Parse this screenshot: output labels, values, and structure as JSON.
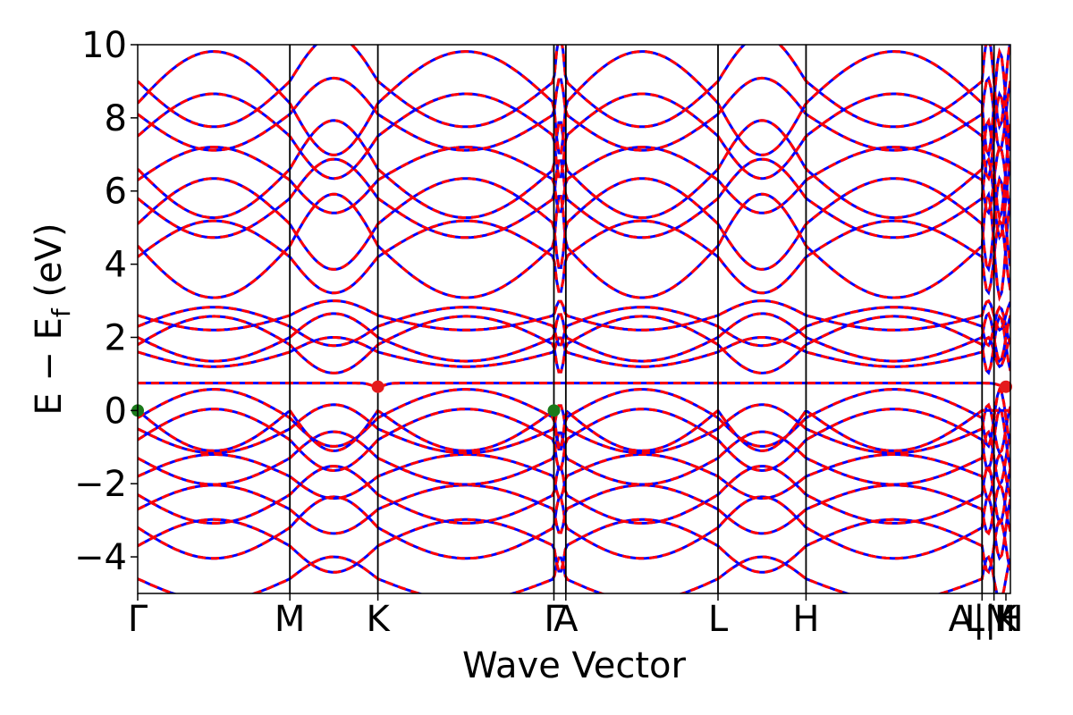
{
  "chart_data": {
    "type": "line",
    "title": "",
    "xlabel": "Wave Vector",
    "ylabel": "E − E",
    "ylabel_subscript": "f",
    "ylabel_unit": "(eV)",
    "ylim": [
      -5,
      10
    ],
    "yticks": [
      {
        "value": -4,
        "label": "−4"
      },
      {
        "value": -2,
        "label": "−2"
      },
      {
        "value": 0,
        "label": "0"
      },
      {
        "value": 2,
        "label": "2"
      },
      {
        "value": 4,
        "label": "4"
      },
      {
        "value": 6,
        "label": "6"
      },
      {
        "value": 8,
        "label": "8"
      },
      {
        "value": 10,
        "label": "10"
      }
    ],
    "xlim": [
      0,
      5.85
    ],
    "high_symmetry_points": [
      {
        "x": 0.0,
        "label": "Γ"
      },
      {
        "x": 1.02,
        "label": "M"
      },
      {
        "x": 1.61,
        "label": "K"
      },
      {
        "x": 2.79,
        "label": "Γ"
      },
      {
        "x": 2.87,
        "label": "A"
      },
      {
        "x": 3.89,
        "label": "L"
      },
      {
        "x": 4.48,
        "label": "H"
      },
      {
        "x": 5.66,
        "label": "A|M"
      },
      {
        "x": 5.74,
        "label": "L|H"
      },
      {
        "x": 5.82,
        "label": "K"
      }
    ],
    "grid": false,
    "legend": "none",
    "series": [
      {
        "style": "solid",
        "color": "#0000ff",
        "linewidth": 3
      },
      {
        "style": "dashed",
        "color": "#ff0000",
        "linewidth": 3
      }
    ],
    "band_energies_at_gamma": [
      -4.6,
      -3.7,
      -3.2,
      -2.7,
      -2.3,
      -1.8,
      -1.3,
      -0.8,
      -0.5,
      -0.2,
      0.0,
      0.75,
      1.6,
      1.8,
      2.0,
      2.3,
      2.6,
      4.2,
      4.5,
      5.1,
      5.8,
      6.3,
      6.6,
      7.5,
      8.1,
      8.4,
      9.0
    ],
    "flat_band_energy": 0.75,
    "vbm_markers": [
      {
        "x": 0.0,
        "y": 0.0,
        "color": "#1a7a1a"
      },
      {
        "x": 2.79,
        "y": 0.0,
        "color": "#1a7a1a"
      }
    ],
    "cbm_markers": [
      {
        "x": 1.61,
        "y": 0.65,
        "color": "#e41a1c"
      },
      {
        "x": 5.82,
        "y": 0.65,
        "color": "#e41a1c"
      }
    ]
  }
}
